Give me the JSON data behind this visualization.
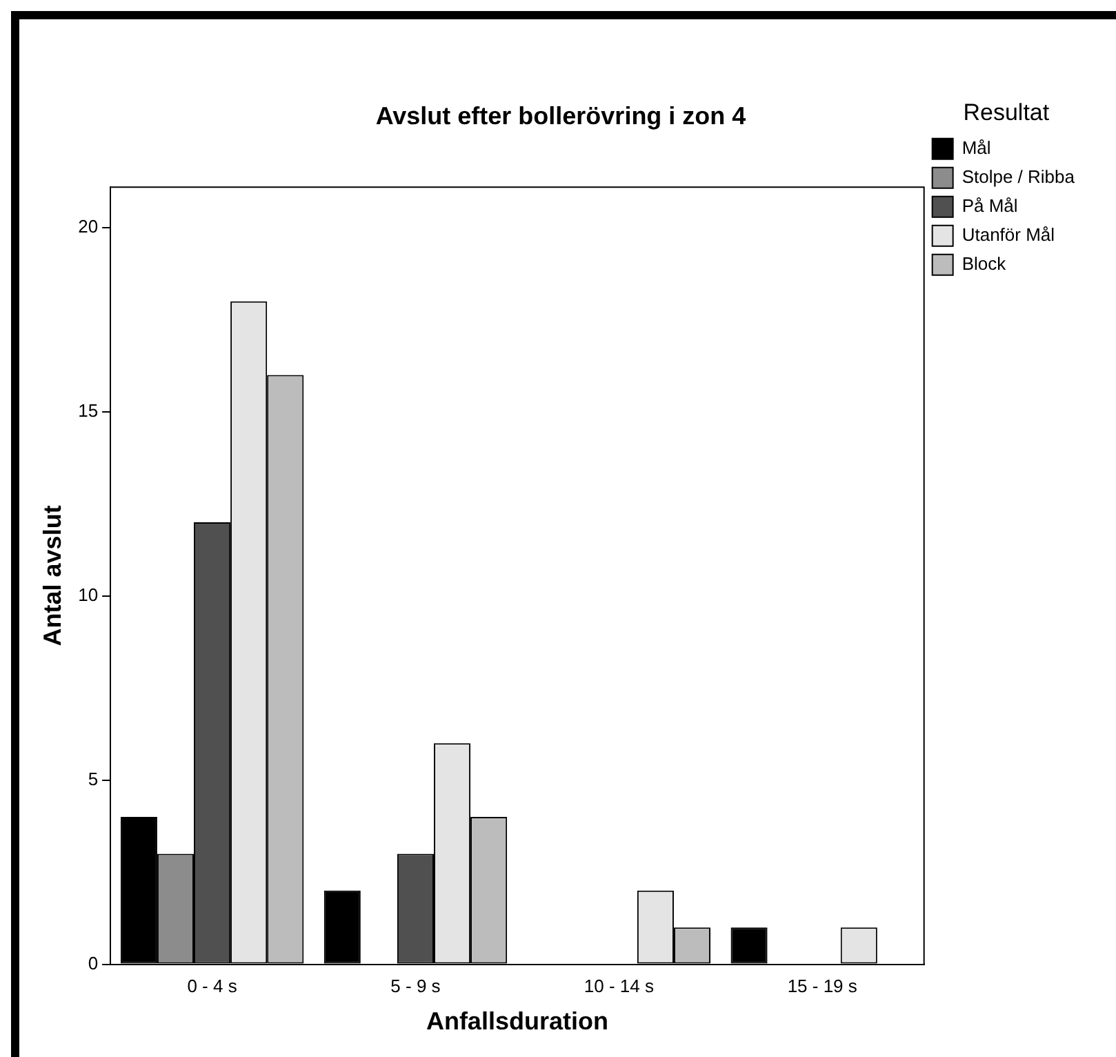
{
  "chart_data": {
    "type": "bar",
    "title": "Avslut efter bollerövring i zon 4",
    "xlabel": "Anfallsduration",
    "ylabel": "Antal avslut",
    "legend_title": "Resultat",
    "categories": [
      "0 - 4 s",
      "5 - 9 s",
      "10 - 14 s",
      "15 - 19 s"
    ],
    "series": [
      {
        "name": "Mål",
        "color": "#000000",
        "values": [
          4,
          2,
          0,
          1
        ]
      },
      {
        "name": "Stolpe / Ribba",
        "color": "#8c8c8c",
        "values": [
          3,
          0,
          0,
          0
        ]
      },
      {
        "name": "På Mål",
        "color": "#505050",
        "values": [
          12,
          3,
          0,
          0
        ]
      },
      {
        "name": "Utanför Mål",
        "color": "#e4e4e4",
        "values": [
          18,
          6,
          2,
          1
        ]
      },
      {
        "name": "Block",
        "color": "#bcbcbc",
        "values": [
          16,
          4,
          1,
          0
        ]
      }
    ],
    "ylim": [
      0,
      21.1
    ],
    "yticks": [
      0,
      5,
      10,
      15,
      20
    ],
    "grid": false,
    "legend": "top right"
  }
}
